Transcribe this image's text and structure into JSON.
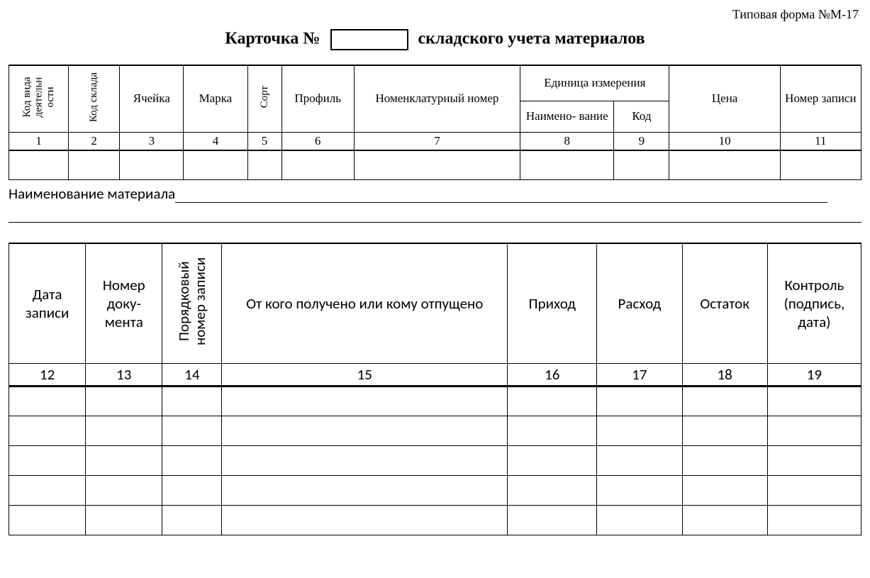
{
  "form_label": "Типовая форма №М-17",
  "title_left": "Карточка №",
  "title_right": "складского учета материалов",
  "card_number": "",
  "table1": {
    "headers": {
      "h1": "Код вида деятельн ости",
      "h2": "Код склада",
      "h3": "Ячейка",
      "h4": "Марка",
      "h5": "Сорт",
      "h6": "Профиль",
      "h7": "Номенклатурный номер",
      "h8_group": "Единица измерения",
      "h8a": "Наимено- вание",
      "h8b": "Код",
      "h10": "Цена",
      "h11": "Номер записи"
    },
    "numbers": [
      "1",
      "2",
      "3",
      "4",
      "5",
      "6",
      "7",
      "8",
      "9",
      "10",
      "11"
    ],
    "col_widths_pct": [
      7.0,
      6.0,
      7.5,
      7.5,
      4.0,
      8.5,
      19.5,
      11.0,
      6.5,
      13.0,
      9.5
    ]
  },
  "material_label": "Наименование материала",
  "table2": {
    "headers": {
      "h12": "Дата записи",
      "h13": "Номер доку- мента",
      "h14": "Порядковый номер записи",
      "h15": "От кого получено или кому отпущено",
      "h16": "Приход",
      "h17": "Расход",
      "h18": "Остаток",
      "h19": "Контроль (подпись, дата)"
    },
    "numbers": [
      "12",
      "13",
      "14",
      "15",
      "16",
      "17",
      "18",
      "19"
    ],
    "col_widths_pct": [
      9.0,
      9.0,
      7.0,
      33.5,
      10.5,
      10.0,
      10.0,
      11.0
    ],
    "blank_rows": 5
  }
}
